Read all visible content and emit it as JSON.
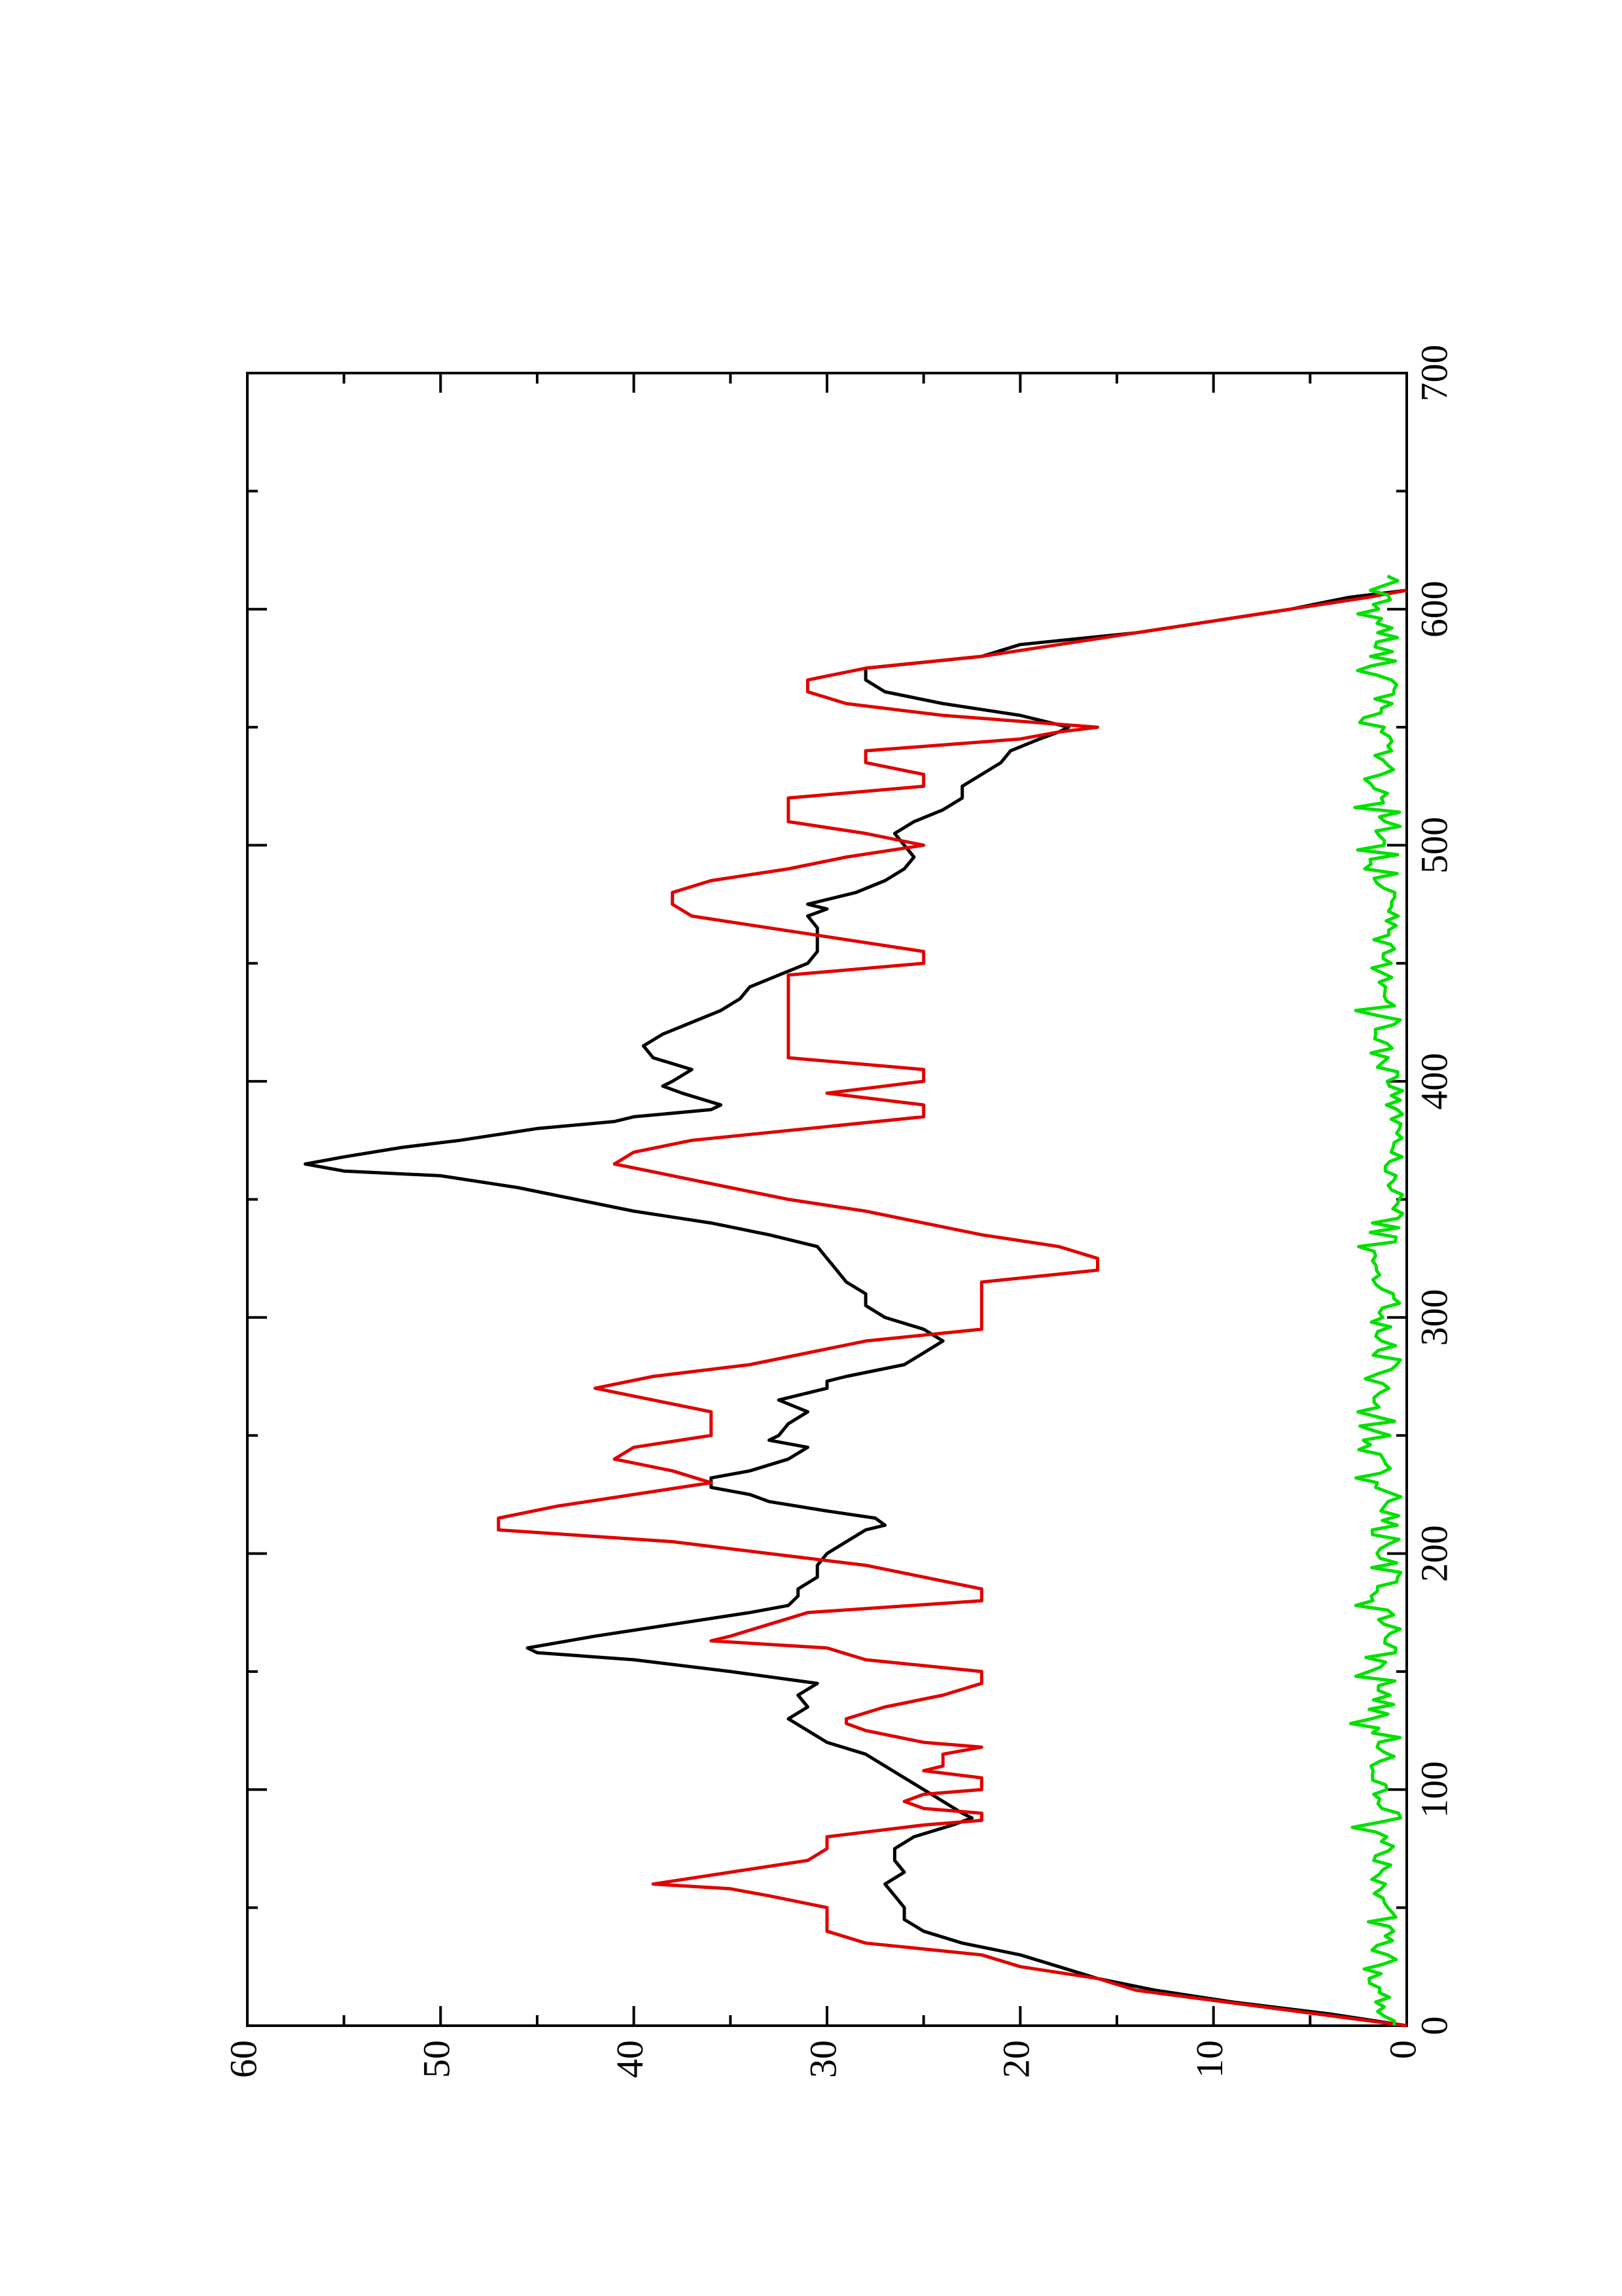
{
  "chart_data": {
    "type": "line",
    "orientation": "rotated 90 degrees counter-clockwise",
    "title": "",
    "xlabel": "",
    "ylabel": "",
    "xlim": [
      0,
      700
    ],
    "ylim": [
      0,
      60
    ],
    "x_ticks_major": [
      0,
      100,
      200,
      300,
      400,
      500,
      600,
      700
    ],
    "x_ticks_minor": [
      50,
      150,
      250,
      350,
      450,
      550,
      650
    ],
    "y_ticks_major": [
      0,
      10,
      20,
      30,
      40,
      50,
      60
    ],
    "y_ticks_minor": [
      5,
      15,
      25,
      35,
      45,
      55
    ],
    "x_tick_labels": [
      "0",
      "100",
      "200",
      "300",
      "400",
      "500",
      "600",
      "700"
    ],
    "y_tick_labels": [
      "0",
      "10",
      "20",
      "30",
      "40",
      "50",
      "60"
    ],
    "grid": false,
    "legend": "none",
    "series": [
      {
        "color": "#000000",
        "points": [
          [
            0,
            0
          ],
          [
            5,
            4
          ],
          [
            10,
            9
          ],
          [
            15,
            13
          ],
          [
            20,
            16
          ],
          [
            25,
            18
          ],
          [
            30,
            20
          ],
          [
            35,
            23
          ],
          [
            40,
            25
          ],
          [
            45,
            26
          ],
          [
            50,
            26
          ],
          [
            55,
            26.5
          ],
          [
            60,
            27
          ],
          [
            65,
            26
          ],
          [
            70,
            26.5
          ],
          [
            75,
            26.5
          ],
          [
            80,
            25.5
          ],
          [
            85,
            23.5
          ],
          [
            88,
            22.5
          ],
          [
            90,
            23
          ],
          [
            95,
            24
          ],
          [
            100,
            25
          ],
          [
            105,
            26
          ],
          [
            110,
            27
          ],
          [
            115,
            28
          ],
          [
            120,
            30
          ],
          [
            125,
            31
          ],
          [
            130,
            32
          ],
          [
            135,
            31
          ],
          [
            140,
            31.5
          ],
          [
            145,
            30.5
          ],
          [
            150,
            35
          ],
          [
            155,
            40
          ],
          [
            158,
            45
          ],
          [
            160,
            45.5
          ],
          [
            165,
            42
          ],
          [
            170,
            38
          ],
          [
            175,
            34
          ],
          [
            178,
            32
          ],
          [
            182,
            31.5
          ],
          [
            185,
            31.5
          ],
          [
            190,
            30.5
          ],
          [
            195,
            30.5
          ],
          [
            200,
            30
          ],
          [
            205,
            29
          ],
          [
            210,
            28
          ],
          [
            212,
            27
          ],
          [
            215,
            27.5
          ],
          [
            218,
            30
          ],
          [
            222,
            33
          ],
          [
            225,
            34
          ],
          [
            228,
            36
          ],
          [
            232,
            36
          ],
          [
            235,
            34
          ],
          [
            240,
            32
          ],
          [
            245,
            31
          ],
          [
            248,
            33
          ],
          [
            250,
            32.5
          ],
          [
            255,
            32
          ],
          [
            260,
            31
          ],
          [
            265,
            32.5
          ],
          [
            270,
            30
          ],
          [
            273,
            30
          ],
          [
            275,
            29
          ],
          [
            280,
            26
          ],
          [
            285,
            25
          ],
          [
            290,
            24
          ],
          [
            295,
            25
          ],
          [
            300,
            27
          ],
          [
            305,
            28
          ],
          [
            310,
            28
          ],
          [
            315,
            29
          ],
          [
            320,
            29.5
          ],
          [
            325,
            30
          ],
          [
            330,
            30.5
          ],
          [
            335,
            33
          ],
          [
            340,
            36
          ],
          [
            345,
            40
          ],
          [
            350,
            43
          ],
          [
            355,
            46
          ],
          [
            360,
            50
          ],
          [
            362,
            55
          ],
          [
            365,
            57
          ],
          [
            368,
            55
          ],
          [
            372,
            52
          ],
          [
            375,
            49
          ],
          [
            380,
            45
          ],
          [
            383,
            41
          ],
          [
            385,
            40
          ],
          [
            388,
            36
          ],
          [
            390,
            35.5
          ],
          [
            395,
            37.5
          ],
          [
            398,
            38.5
          ],
          [
            400,
            38
          ],
          [
            405,
            37
          ],
          [
            410,
            39
          ],
          [
            415,
            39.5
          ],
          [
            420,
            38.5
          ],
          [
            425,
            37
          ],
          [
            430,
            35.5
          ],
          [
            435,
            34.5
          ],
          [
            440,
            34
          ],
          [
            445,
            32.5
          ],
          [
            450,
            31
          ],
          [
            455,
            30.5
          ],
          [
            460,
            30.5
          ],
          [
            465,
            30.5
          ],
          [
            470,
            31
          ],
          [
            473,
            30
          ],
          [
            475,
            31
          ],
          [
            480,
            28.5
          ],
          [
            485,
            27
          ],
          [
            490,
            26
          ],
          [
            495,
            25.5
          ],
          [
            500,
            26
          ],
          [
            505,
            26.5
          ],
          [
            510,
            25.5
          ],
          [
            515,
            24
          ],
          [
            520,
            23
          ],
          [
            525,
            23
          ],
          [
            530,
            22
          ],
          [
            535,
            21
          ],
          [
            540,
            20.5
          ],
          [
            545,
            19
          ],
          [
            548,
            18
          ],
          [
            550,
            17.5
          ],
          [
            555,
            20
          ],
          [
            560,
            24
          ],
          [
            565,
            27
          ],
          [
            570,
            28
          ],
          [
            575,
            28
          ],
          [
            580,
            22
          ],
          [
            585,
            20
          ],
          [
            590,
            14
          ],
          [
            595,
            10
          ],
          [
            600,
            6
          ],
          [
            605,
            3
          ],
          [
            608,
            0
          ]
        ]
      },
      {
        "color": "#e00000",
        "points": [
          [
            0,
            0
          ],
          [
            15,
            14
          ],
          [
            20,
            16
          ],
          [
            25,
            20
          ],
          [
            30,
            22
          ],
          [
            35,
            28
          ],
          [
            40,
            30
          ],
          [
            45,
            30
          ],
          [
            50,
            30
          ],
          [
            55,
            33
          ],
          [
            58,
            35
          ],
          [
            60,
            39
          ],
          [
            65,
            35
          ],
          [
            70,
            31
          ],
          [
            75,
            30
          ],
          [
            80,
            30
          ],
          [
            85,
            25
          ],
          [
            87,
            22
          ],
          [
            90,
            22
          ],
          [
            92,
            25
          ],
          [
            95,
            26
          ],
          [
            98,
            25
          ],
          [
            100,
            22
          ],
          [
            102,
            22
          ],
          [
            105,
            22
          ],
          [
            108,
            25
          ],
          [
            110,
            24
          ],
          [
            115,
            24
          ],
          [
            118,
            22
          ],
          [
            120,
            25
          ],
          [
            125,
            28
          ],
          [
            128,
            29
          ],
          [
            130,
            29
          ],
          [
            135,
            27
          ],
          [
            140,
            24
          ],
          [
            145,
            22
          ],
          [
            150,
            22
          ],
          [
            155,
            28
          ],
          [
            160,
            30
          ],
          [
            163,
            36
          ],
          [
            165,
            35
          ],
          [
            170,
            33
          ],
          [
            175,
            31
          ],
          [
            180,
            22
          ],
          [
            182,
            22
          ],
          [
            185,
            22
          ],
          [
            190,
            25
          ],
          [
            195,
            28
          ],
          [
            200,
            33
          ],
          [
            205,
            38
          ],
          [
            210,
            47
          ],
          [
            215,
            47
          ],
          [
            220,
            44
          ],
          [
            225,
            40
          ],
          [
            230,
            36
          ],
          [
            235,
            38
          ],
          [
            240,
            41
          ],
          [
            245,
            40
          ],
          [
            250,
            36
          ],
          [
            255,
            36
          ],
          [
            260,
            36
          ],
          [
            265,
            39
          ],
          [
            270,
            42
          ],
          [
            275,
            39
          ],
          [
            280,
            34
          ],
          [
            285,
            31
          ],
          [
            290,
            28
          ],
          [
            295,
            22
          ],
          [
            300,
            22
          ],
          [
            305,
            22
          ],
          [
            310,
            22
          ],
          [
            315,
            22
          ],
          [
            320,
            16
          ],
          [
            325,
            16
          ],
          [
            330,
            18
          ],
          [
            335,
            22
          ],
          [
            340,
            25
          ],
          [
            345,
            28
          ],
          [
            350,
            32
          ],
          [
            355,
            35
          ],
          [
            360,
            38
          ],
          [
            365,
            41
          ],
          [
            370,
            40
          ],
          [
            375,
            37
          ],
          [
            380,
            31
          ],
          [
            385,
            25
          ],
          [
            390,
            25
          ],
          [
            395,
            30
          ],
          [
            400,
            25
          ],
          [
            405,
            25
          ],
          [
            410,
            32
          ],
          [
            415,
            32
          ],
          [
            420,
            32
          ],
          [
            425,
            32
          ],
          [
            430,
            32
          ],
          [
            435,
            32
          ],
          [
            440,
            32
          ],
          [
            445,
            32
          ],
          [
            450,
            25
          ],
          [
            455,
            25
          ],
          [
            460,
            29
          ],
          [
            465,
            33
          ],
          [
            470,
            37
          ],
          [
            475,
            38
          ],
          [
            480,
            38
          ],
          [
            485,
            36
          ],
          [
            490,
            32
          ],
          [
            495,
            29
          ],
          [
            500,
            25
          ],
          [
            505,
            28
          ],
          [
            510,
            32
          ],
          [
            515,
            32
          ],
          [
            520,
            32
          ],
          [
            525,
            25
          ],
          [
            530,
            25
          ],
          [
            535,
            28
          ],
          [
            540,
            28
          ],
          [
            545,
            20
          ],
          [
            548,
            18
          ],
          [
            550,
            16
          ],
          [
            555,
            24
          ],
          [
            560,
            29
          ],
          [
            565,
            31
          ],
          [
            570,
            31
          ],
          [
            575,
            28
          ],
          [
            580,
            22
          ],
          [
            585,
            18
          ],
          [
            590,
            14
          ],
          [
            595,
            10
          ],
          [
            600,
            6
          ],
          [
            605,
            2
          ],
          [
            608,
            0
          ]
        ]
      },
      {
        "color": "#00e000",
        "points": "noise"
      }
    ]
  }
}
